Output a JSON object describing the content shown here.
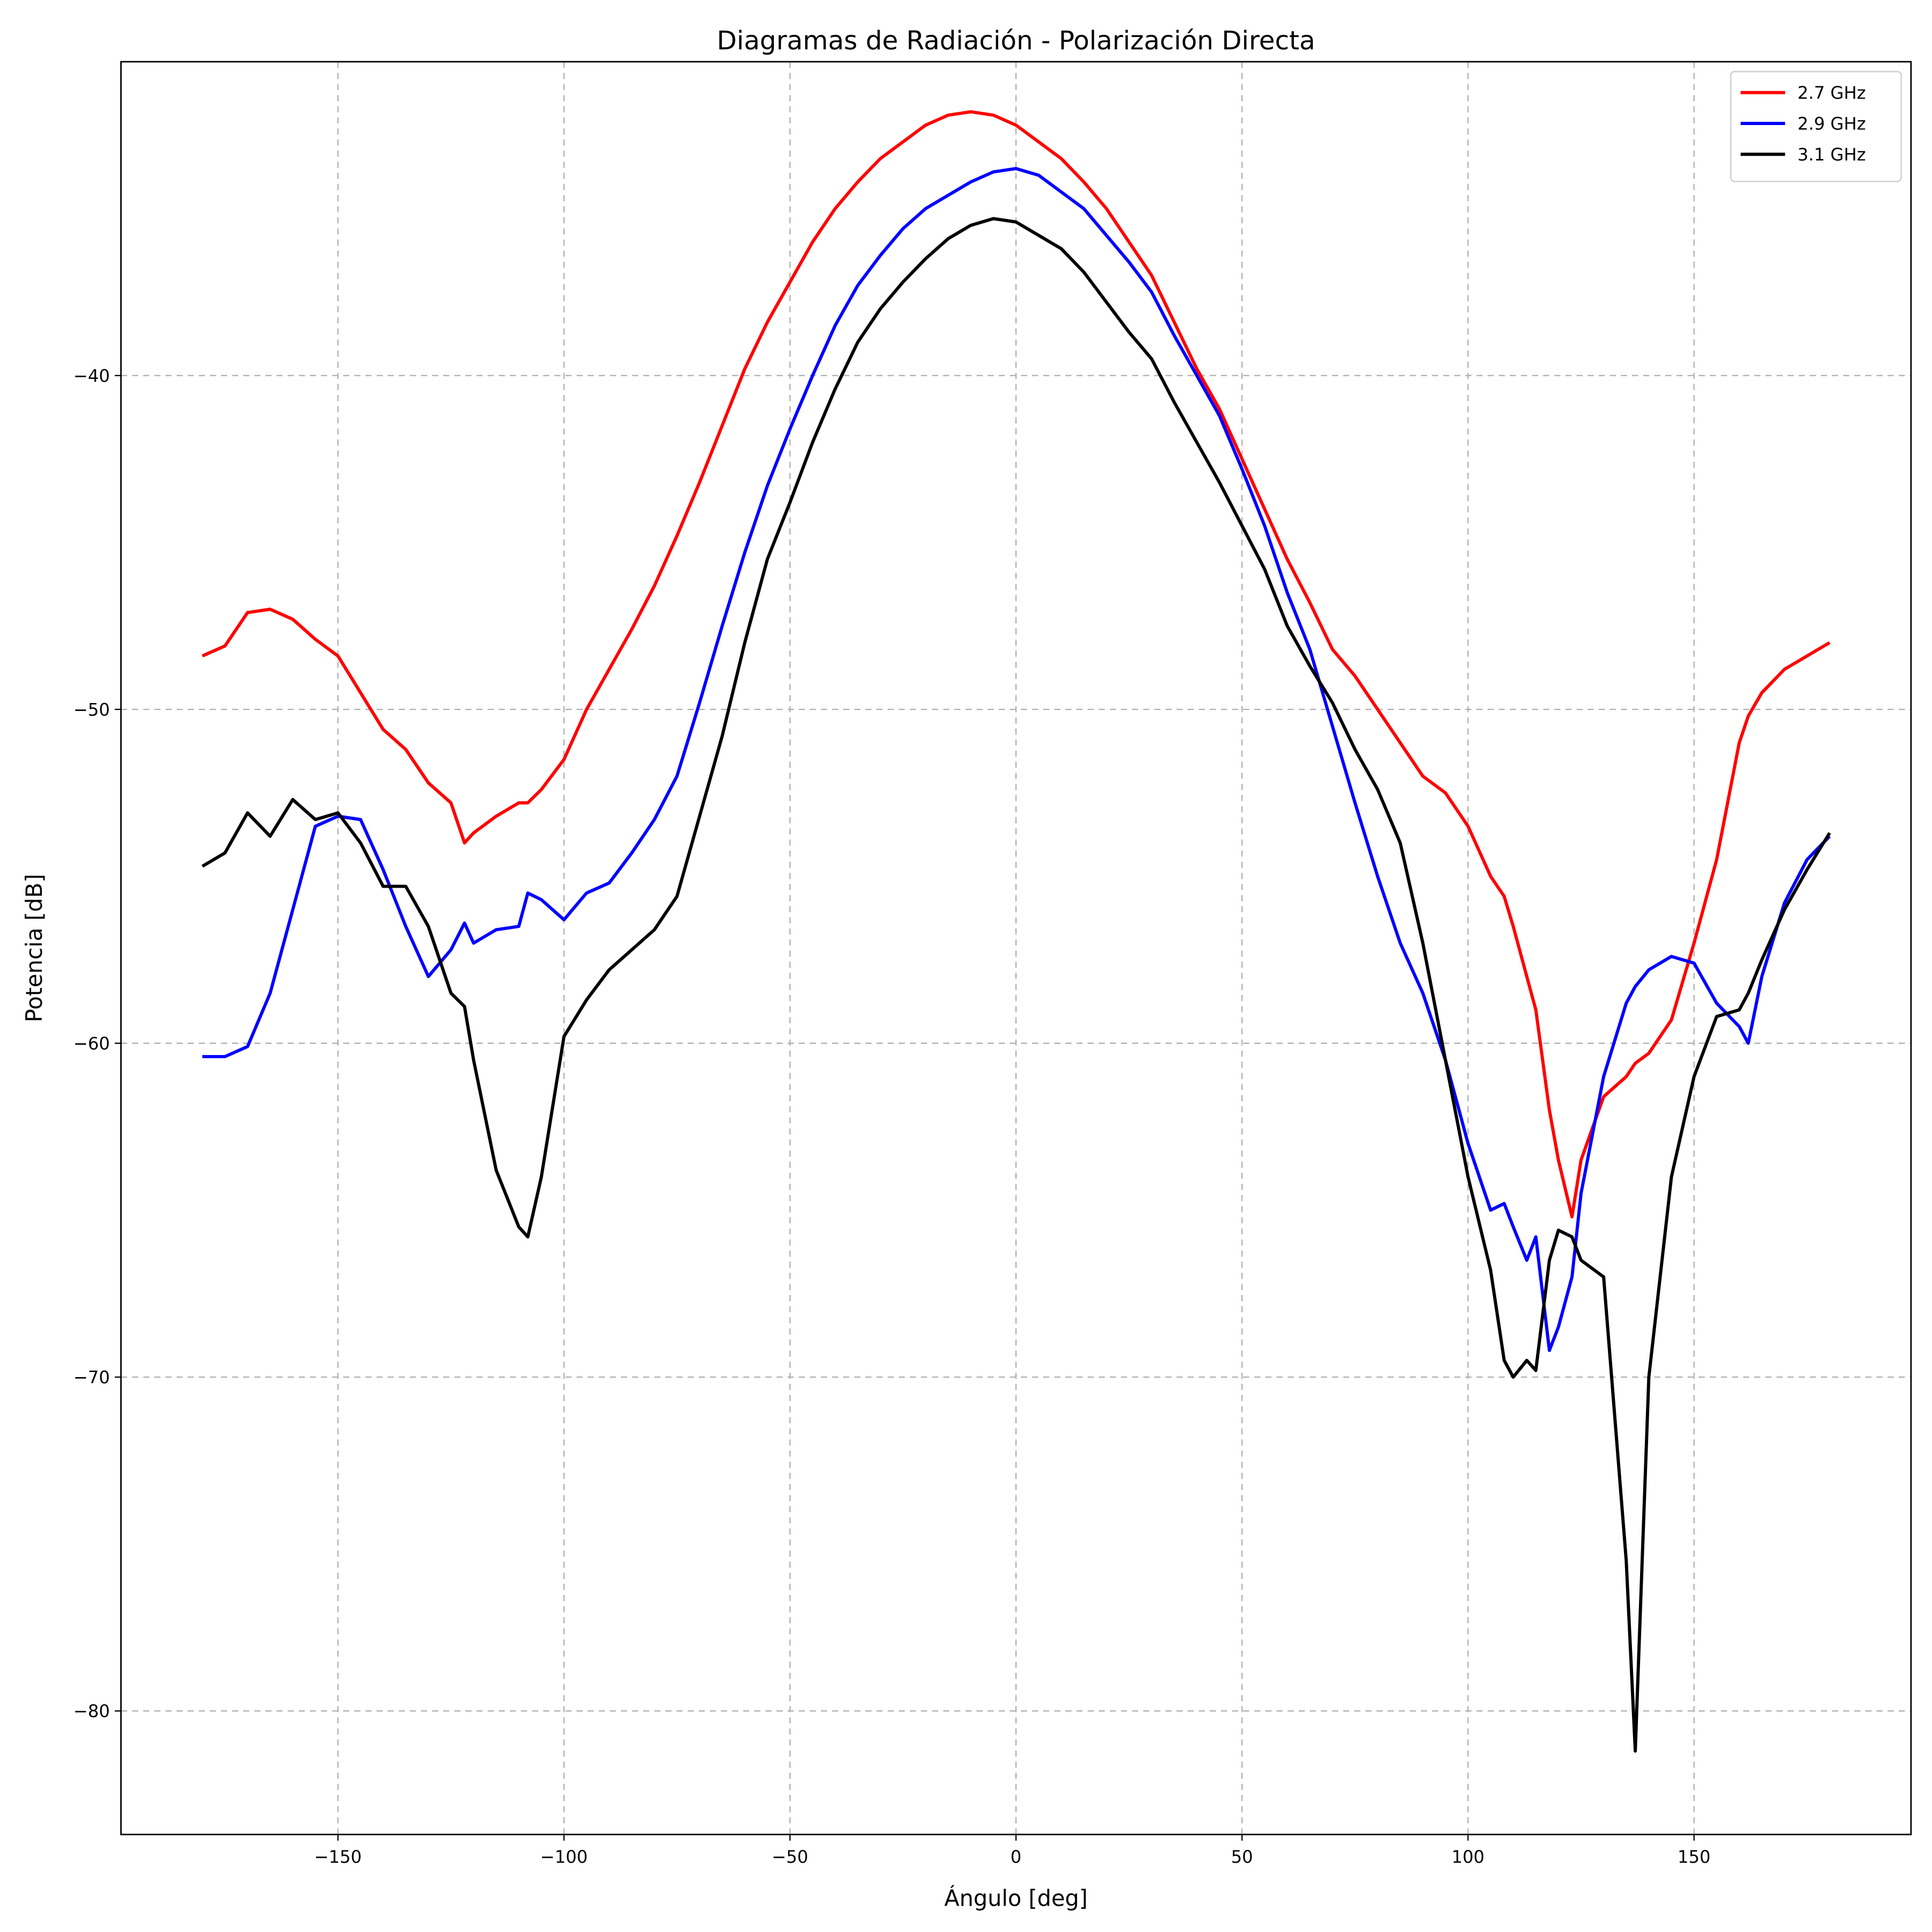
{
  "chart_data": {
    "type": "line",
    "title": "Diagramas de Radiación - Polarización Directa",
    "x_label": "Ángulo [deg]",
    "y_label": "Potencia [dB]",
    "x": [
      -180,
      -175,
      -170,
      -165,
      -160,
      -155,
      -150,
      -145,
      -140,
      -135,
      -130,
      -125,
      -122,
      -120,
      -115,
      -110,
      -108,
      -105,
      -100,
      -95,
      -90,
      -85,
      -80,
      -75,
      -70,
      -65,
      -60,
      -55,
      -50,
      -45,
      -40,
      -35,
      -30,
      -25,
      -20,
      -15,
      -10,
      -5,
      0,
      5,
      10,
      15,
      20,
      25,
      30,
      35,
      40,
      45,
      50,
      55,
      60,
      65,
      70,
      75,
      80,
      85,
      90,
      95,
      100,
      105,
      108,
      110,
      113,
      115,
      118,
      120,
      123,
      125,
      130,
      135,
      137,
      140,
      145,
      150,
      155,
      160,
      162,
      165,
      170,
      175,
      180
    ],
    "series": [
      {
        "name": "2.7 GHz",
        "color": "#ff0000",
        "values": [
          -48.4,
          -48.1,
          -47.1,
          -47.0,
          -47.3,
          -47.9,
          -48.4,
          -49.5,
          -50.6,
          -51.2,
          -52.2,
          -52.8,
          -54.0,
          -53.7,
          -53.2,
          -52.8,
          -52.8,
          -52.4,
          -51.5,
          -50.0,
          -48.8,
          -47.6,
          -46.3,
          -44.8,
          -43.2,
          -41.5,
          -39.8,
          -38.4,
          -37.2,
          -36.0,
          -35.0,
          -34.2,
          -33.5,
          -33.0,
          -32.5,
          -32.2,
          -32.1,
          -32.2,
          -32.5,
          -33.0,
          -33.5,
          -34.2,
          -35.0,
          -36.0,
          -37.0,
          -38.4,
          -39.8,
          -41.0,
          -42.5,
          -44.0,
          -45.5,
          -46.8,
          -48.2,
          -49.0,
          -50.0,
          -51.0,
          -52.0,
          -52.5,
          -53.5,
          -55.0,
          -55.6,
          -56.5,
          -58.0,
          -59.0,
          -62.0,
          -63.5,
          -65.2,
          -63.5,
          -61.6,
          -61.0,
          -60.6,
          -60.3,
          -59.3,
          -57.0,
          -54.5,
          -51.0,
          -50.2,
          -49.5,
          -48.8,
          -48.4,
          -48.0
        ]
      },
      {
        "name": "2.9 GHz",
        "color": "#0000ff",
        "values": [
          -60.4,
          -60.4,
          -60.1,
          -58.5,
          -56.0,
          -53.5,
          -53.2,
          -53.3,
          -54.8,
          -56.5,
          -58.0,
          -57.2,
          -56.4,
          -57.0,
          -56.6,
          -56.5,
          -55.5,
          -55.7,
          -56.3,
          -55.5,
          -55.2,
          -54.3,
          -53.3,
          -52.0,
          -49.8,
          -47.5,
          -45.3,
          -43.3,
          -41.6,
          -40.0,
          -38.5,
          -37.3,
          -36.4,
          -35.6,
          -35.0,
          -34.6,
          -34.2,
          -33.9,
          -33.8,
          -34.0,
          -34.5,
          -35.0,
          -35.8,
          -36.6,
          -37.5,
          -38.8,
          -40.0,
          -41.2,
          -42.8,
          -44.5,
          -46.5,
          -48.2,
          -50.5,
          -52.8,
          -55.0,
          -57.0,
          -58.5,
          -60.5,
          -63.0,
          -65.0,
          -64.8,
          -65.5,
          -66.5,
          -65.8,
          -69.2,
          -68.5,
          -67.0,
          -64.5,
          -61.0,
          -58.8,
          -58.3,
          -57.8,
          -57.4,
          -57.6,
          -58.8,
          -59.5,
          -60.0,
          -58.0,
          -55.8,
          -54.5,
          -53.8
        ]
      },
      {
        "name": "3.1 GHz",
        "color": "#000000",
        "values": [
          -54.7,
          -54.3,
          -53.1,
          -53.8,
          -52.7,
          -53.3,
          -53.1,
          -54.0,
          -55.3,
          -55.3,
          -56.5,
          -58.5,
          -58.9,
          -60.5,
          -63.8,
          -65.5,
          -65.8,
          -64.0,
          -59.8,
          -58.7,
          -57.8,
          -57.2,
          -56.6,
          -55.6,
          -53.2,
          -50.8,
          -48.0,
          -45.5,
          -43.8,
          -42.0,
          -40.4,
          -39.0,
          -38.0,
          -37.2,
          -36.5,
          -35.9,
          -35.5,
          -35.3,
          -35.4,
          -35.8,
          -36.2,
          -36.9,
          -37.8,
          -38.7,
          -39.5,
          -40.8,
          -42.0,
          -43.2,
          -44.5,
          -45.8,
          -47.5,
          -48.7,
          -49.8,
          -51.2,
          -52.4,
          -54.0,
          -57.0,
          -60.5,
          -64.0,
          -66.8,
          -69.5,
          -70.0,
          -69.5,
          -69.8,
          -66.5,
          -65.6,
          -65.8,
          -66.5,
          -67.0,
          -75.5,
          -81.2,
          -70.0,
          -64.0,
          -61.0,
          -59.2,
          -59.0,
          -58.5,
          -57.5,
          -56.0,
          -54.8,
          -53.7
        ]
      }
    ],
    "xlim": [
      -198,
      198
    ],
    "ylim": [
      -83.7,
      -30.6
    ],
    "xticks": [
      {
        "value": -150,
        "label": "−150"
      },
      {
        "value": -100,
        "label": "−100"
      },
      {
        "value": -50,
        "label": "−50"
      },
      0,
      50,
      100,
      150
    ],
    "yticks": [
      {
        "value": -80,
        "label": "−80"
      },
      {
        "value": -70,
        "label": "−70"
      },
      {
        "value": -60,
        "label": "−60"
      },
      {
        "value": -50,
        "label": "−50"
      },
      {
        "value": -40,
        "label": "−40"
      }
    ],
    "grid": true,
    "legend": "upper right"
  }
}
